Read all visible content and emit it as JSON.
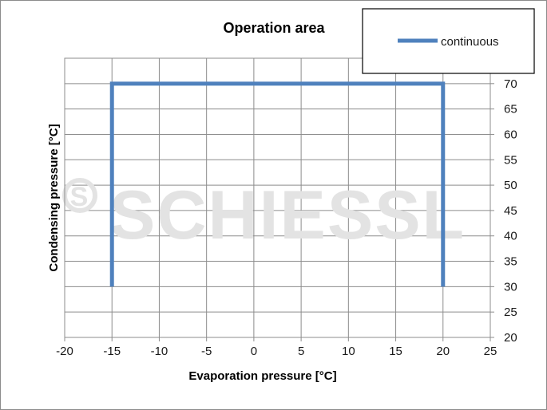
{
  "chart_data": {
    "type": "line",
    "title": "Operation area",
    "xlabel": "Evaporation pressure [°C]",
    "ylabel": "Condensing pressure [°C]",
    "xlim": [
      -20,
      25
    ],
    "ylim": [
      20,
      75
    ],
    "x_ticks": [
      -20,
      -15,
      -10,
      -5,
      0,
      5,
      10,
      15,
      20,
      25
    ],
    "y_ticks": [
      20,
      25,
      30,
      35,
      40,
      45,
      50,
      55,
      60,
      65,
      70
    ],
    "grid": true,
    "legend_position": "top-right",
    "series": [
      {
        "name": "continuous",
        "color": "#4f81bd",
        "x": [
          -15,
          -15,
          20,
          20
        ],
        "y": [
          30,
          70,
          70,
          30
        ]
      }
    ]
  },
  "watermark": {
    "text": "SCHIESSL",
    "logo_letter": "S"
  }
}
